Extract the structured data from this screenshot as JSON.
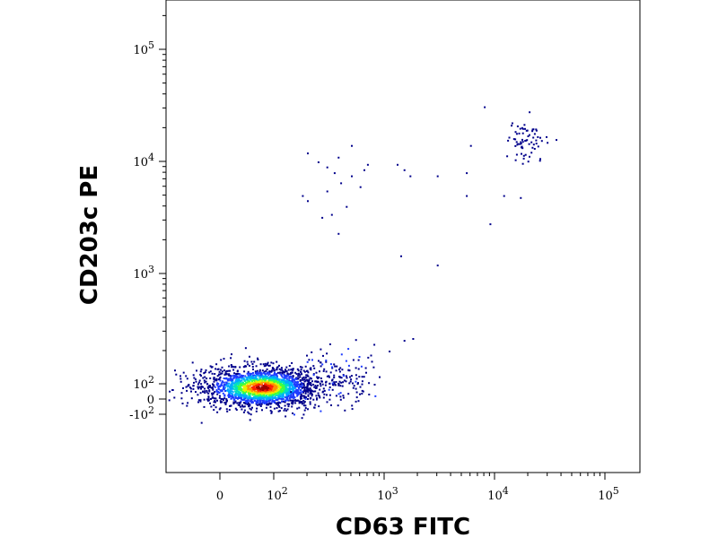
{
  "chart_data": {
    "type": "scatter",
    "title": "",
    "xlabel": "CD63 FITC",
    "ylabel": "CD203c PE",
    "x_scale": "biexponential",
    "y_scale": "biexponential",
    "xlim": [
      -300,
      200000
    ],
    "ylim": [
      -2000,
      350000
    ],
    "x_ticks": [
      {
        "value": 0,
        "label": "0"
      },
      {
        "value": 100,
        "label": "10",
        "exp": "2"
      },
      {
        "value": 1000,
        "label": "10",
        "exp": "3"
      },
      {
        "value": 10000,
        "label": "10",
        "exp": "4"
      },
      {
        "value": 100000,
        "label": "10",
        "exp": "5"
      }
    ],
    "y_ticks": [
      {
        "value": 100000,
        "label": "10",
        "exp": "5"
      },
      {
        "value": 10000,
        "label": "10",
        "exp": "4"
      },
      {
        "value": 1000,
        "label": "10",
        "exp": "3"
      },
      {
        "value": 100,
        "label": "10",
        "exp": "2"
      },
      {
        "value": 0,
        "label": "0"
      },
      {
        "value": -100,
        "label": "-10",
        "exp": "2"
      }
    ],
    "grid": false,
    "legend": "none",
    "density_colors": [
      "#00008b",
      "#1e3cff",
      "#00a8ff",
      "#00e0c0",
      "#40ff40",
      "#e8f000",
      "#ff9000",
      "#ff2000",
      "#a00000"
    ],
    "populations": [
      {
        "x_center": 80,
        "y_center": 80,
        "count": 2200,
        "density": "high"
      },
      {
        "x_center": 20000,
        "y_center": 15000,
        "count": 70,
        "density": "low"
      }
    ],
    "scatter_points": [
      [
        200,
        12000
      ],
      [
        300,
        9000
      ],
      [
        350,
        8000
      ],
      [
        400,
        6500
      ],
      [
        500,
        7500
      ],
      [
        500,
        14000
      ],
      [
        250,
        10000
      ],
      [
        380,
        11000
      ],
      [
        180,
        5000
      ],
      [
        200,
        4500
      ],
      [
        700,
        9500
      ],
      [
        650,
        8500
      ],
      [
        1300,
        9500
      ],
      [
        1500,
        8500
      ],
      [
        1700,
        7500
      ],
      [
        3000,
        7500
      ],
      [
        5500,
        8000
      ],
      [
        8000,
        31000
      ],
      [
        6000,
        14000
      ],
      [
        5500,
        5000
      ],
      [
        9000,
        2800
      ],
      [
        12000,
        5000
      ],
      [
        17000,
        4800
      ],
      [
        270,
        3200
      ],
      [
        380,
        2300
      ],
      [
        1400,
        1450
      ],
      [
        3000,
        1200
      ],
      [
        1500,
        250
      ],
      [
        1800,
        260
      ],
      [
        1100,
        200
      ],
      [
        800,
        230
      ],
      [
        330,
        3400
      ],
      [
        300,
        5500
      ],
      [
        600,
        6000
      ],
      [
        450,
        4000
      ]
    ]
  }
}
